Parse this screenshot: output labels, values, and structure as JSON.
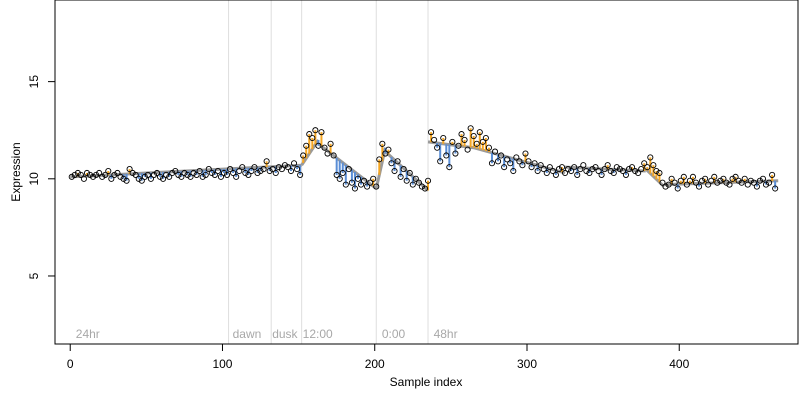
{
  "chart_data": {
    "type": "scatter",
    "title": "",
    "xlabel": "Sample index",
    "ylabel": "Expression",
    "xlim": [
      -10,
      478
    ],
    "ylim": [
      1.5,
      19.2
    ],
    "x_ticks": [
      0,
      100,
      200,
      300,
      400
    ],
    "y_ticks": [
      5,
      10,
      15
    ],
    "grid": false,
    "legend": "none",
    "point_color": "#000000",
    "fit_color": "#9a9a9a",
    "vline_color": "#dedede",
    "annotation_color": "#a8a8a8",
    "residual_colors": {
      "above": "#f5a623",
      "below": "#5a8ed6"
    },
    "vlines": [
      104,
      132,
      152,
      201,
      235
    ],
    "annotations": [
      {
        "x": 3,
        "label": "24hr"
      },
      {
        "x": 106,
        "label": "dawn"
      },
      {
        "x": 132,
        "label": "dusk"
      },
      {
        "x": 152,
        "label": "12:00"
      },
      {
        "x": 204,
        "label": "0:00"
      },
      {
        "x": 238,
        "label": "48hr"
      }
    ],
    "fit_segments": [
      {
        "x": [
          0,
          152
        ],
        "y": [
          10.1,
          10.7
        ]
      },
      {
        "x": [
          152,
          163
        ],
        "y": [
          10.7,
          12.0
        ]
      },
      {
        "x": [
          163,
          201
        ],
        "y": [
          11.8,
          9.5
        ]
      },
      {
        "x": [
          201,
          207
        ],
        "y": [
          9.5,
          11.6
        ]
      },
      {
        "x": [
          207,
          235
        ],
        "y": [
          11.4,
          9.4
        ]
      },
      {
        "x": [
          235,
          265
        ],
        "y": [
          11.9,
          11.6
        ]
      },
      {
        "x": [
          265,
          325
        ],
        "y": [
          11.6,
          10.3
        ]
      },
      {
        "x": [
          325,
          378
        ],
        "y": [
          10.6,
          10.4
        ]
      },
      {
        "x": [
          378,
          390
        ],
        "y": [
          10.5,
          9.6
        ]
      },
      {
        "x": [
          390,
          465
        ],
        "y": [
          9.7,
          9.9
        ]
      }
    ],
    "series": [
      {
        "values": [
          [
            1,
            10.1
          ],
          [
            3,
            10.2
          ],
          [
            5,
            10.3
          ],
          [
            7,
            10.2
          ],
          [
            9,
            10.0
          ],
          [
            11,
            10.3
          ],
          [
            13,
            10.2
          ],
          [
            15,
            10.1
          ],
          [
            17,
            10.2
          ],
          [
            19,
            10.3
          ],
          [
            21,
            10.1
          ],
          [
            23,
            10.2
          ],
          [
            25,
            10.4
          ],
          [
            27,
            10.0
          ],
          [
            29,
            10.2
          ],
          [
            31,
            10.3
          ],
          [
            33,
            10.1
          ],
          [
            35,
            10.0
          ],
          [
            37,
            9.9
          ],
          [
            39,
            10.5
          ],
          [
            41,
            10.3
          ],
          [
            43,
            10.2
          ],
          [
            45,
            10.0
          ],
          [
            47,
            9.9
          ],
          [
            49,
            10.1
          ],
          [
            51,
            10.2
          ],
          [
            53,
            10.0
          ],
          [
            55,
            10.2
          ],
          [
            57,
            10.3
          ],
          [
            59,
            10.1
          ],
          [
            61,
            10.0
          ],
          [
            63,
            10.2
          ],
          [
            65,
            10.1
          ],
          [
            67,
            10.3
          ],
          [
            69,
            10.4
          ],
          [
            71,
            10.2
          ],
          [
            73,
            10.1
          ],
          [
            75,
            10.3
          ],
          [
            77,
            10.2
          ],
          [
            79,
            10.1
          ],
          [
            81,
            10.3
          ],
          [
            83,
            10.2
          ],
          [
            85,
            10.4
          ],
          [
            87,
            10.1
          ],
          [
            89,
            10.2
          ],
          [
            91,
            10.5
          ],
          [
            93,
            10.3
          ],
          [
            95,
            10.2
          ],
          [
            97,
            10.4
          ],
          [
            99,
            10.1
          ],
          [
            101,
            10.3
          ],
          [
            103,
            10.2
          ],
          [
            105,
            10.5
          ],
          [
            107,
            10.3
          ],
          [
            109,
            10.1
          ],
          [
            111,
            10.4
          ],
          [
            113,
            10.6
          ],
          [
            115,
            10.3
          ],
          [
            117,
            10.2
          ],
          [
            119,
            10.4
          ],
          [
            121,
            10.6
          ],
          [
            123,
            10.3
          ],
          [
            125,
            10.4
          ],
          [
            127,
            10.5
          ],
          [
            129,
            10.9
          ],
          [
            131,
            10.4
          ],
          [
            133,
            10.5
          ],
          [
            135,
            10.3
          ],
          [
            137,
            10.6
          ],
          [
            139,
            10.5
          ],
          [
            141,
            10.7
          ],
          [
            143,
            10.6
          ],
          [
            145,
            10.4
          ],
          [
            147,
            10.8
          ],
          [
            149,
            10.5
          ],
          [
            151,
            10.2
          ],
          [
            153,
            11.2
          ],
          [
            155,
            11.7
          ],
          [
            157,
            12.3
          ],
          [
            159,
            12.1
          ],
          [
            161,
            12.5
          ],
          [
            163,
            11.7
          ],
          [
            165,
            12.4
          ],
          [
            167,
            11.6
          ],
          [
            169,
            11.3
          ],
          [
            171,
            11.8
          ],
          [
            173,
            11.2
          ],
          [
            175,
            10.2
          ],
          [
            177,
            10.0
          ],
          [
            179,
            10.3
          ],
          [
            181,
            9.7
          ],
          [
            183,
            10.5
          ],
          [
            185,
            9.8
          ],
          [
            187,
            9.5
          ],
          [
            189,
            10.0
          ],
          [
            191,
            9.7
          ],
          [
            193,
            9.9
          ],
          [
            195,
            9.6
          ],
          [
            197,
            9.8
          ],
          [
            199,
            10.0
          ],
          [
            201,
            9.6
          ],
          [
            203,
            11.0
          ],
          [
            205,
            11.8
          ],
          [
            207,
            11.3
          ],
          [
            209,
            11.5
          ],
          [
            211,
            10.8
          ],
          [
            213,
            10.4
          ],
          [
            215,
            10.9
          ],
          [
            217,
            10.1
          ],
          [
            219,
            10.5
          ],
          [
            221,
            9.9
          ],
          [
            223,
            10.3
          ],
          [
            225,
            9.7
          ],
          [
            227,
            10.0
          ],
          [
            229,
            9.8
          ],
          [
            231,
            9.6
          ],
          [
            233,
            9.5
          ],
          [
            235,
            9.9
          ],
          [
            237,
            12.4
          ],
          [
            239,
            12.0
          ],
          [
            241,
            11.6
          ],
          [
            243,
            10.9
          ],
          [
            245,
            12.1
          ],
          [
            247,
            11.2
          ],
          [
            249,
            10.6
          ],
          [
            251,
            11.9
          ],
          [
            253,
            11.3
          ],
          [
            255,
            11.7
          ],
          [
            257,
            12.3
          ],
          [
            259,
            12.0
          ],
          [
            261,
            11.5
          ],
          [
            263,
            12.6
          ],
          [
            265,
            12.2
          ],
          [
            267,
            11.8
          ],
          [
            269,
            12.4
          ],
          [
            271,
            11.9
          ],
          [
            273,
            12.1
          ],
          [
            275,
            11.6
          ],
          [
            277,
            10.8
          ],
          [
            279,
            11.4
          ],
          [
            281,
            10.9
          ],
          [
            283,
            11.2
          ],
          [
            285,
            10.6
          ],
          [
            287,
            11.0
          ],
          [
            289,
            10.8
          ],
          [
            291,
            10.4
          ],
          [
            293,
            11.1
          ],
          [
            295,
            10.9
          ],
          [
            297,
            10.7
          ],
          [
            299,
            11.3
          ],
          [
            301,
            10.9
          ],
          [
            303,
            10.6
          ],
          [
            305,
            10.8
          ],
          [
            307,
            10.4
          ],
          [
            309,
            10.7
          ],
          [
            311,
            10.5
          ],
          [
            313,
            10.3
          ],
          [
            315,
            10.6
          ],
          [
            317,
            10.4
          ],
          [
            319,
            10.2
          ],
          [
            321,
            10.5
          ],
          [
            323,
            10.6
          ],
          [
            325,
            10.3
          ],
          [
            327,
            10.5
          ],
          [
            329,
            10.4
          ],
          [
            331,
            10.6
          ],
          [
            333,
            10.2
          ],
          [
            335,
            10.5
          ],
          [
            337,
            10.7
          ],
          [
            339,
            10.4
          ],
          [
            341,
            10.3
          ],
          [
            343,
            10.5
          ],
          [
            345,
            10.6
          ],
          [
            347,
            10.4
          ],
          [
            349,
            10.2
          ],
          [
            351,
            10.5
          ],
          [
            353,
            10.7
          ],
          [
            355,
            10.4
          ],
          [
            357,
            10.3
          ],
          [
            359,
            10.6
          ],
          [
            361,
            10.5
          ],
          [
            363,
            10.4
          ],
          [
            365,
            10.2
          ],
          [
            367,
            10.5
          ],
          [
            369,
            10.6
          ],
          [
            371,
            10.4
          ],
          [
            373,
            10.3
          ],
          [
            375,
            10.5
          ],
          [
            377,
            10.8
          ],
          [
            379,
            10.6
          ],
          [
            381,
            11.1
          ],
          [
            383,
            10.7
          ],
          [
            385,
            10.4
          ],
          [
            387,
            10.3
          ],
          [
            389,
            9.8
          ],
          [
            391,
            9.6
          ],
          [
            393,
            9.7
          ],
          [
            395,
            10.0
          ],
          [
            397,
            9.8
          ],
          [
            399,
            9.5
          ],
          [
            401,
            9.9
          ],
          [
            403,
            10.1
          ],
          [
            405,
            9.7
          ],
          [
            407,
            9.9
          ],
          [
            409,
            10.1
          ],
          [
            411,
            9.8
          ],
          [
            413,
            9.6
          ],
          [
            415,
            9.9
          ],
          [
            417,
            10.0
          ],
          [
            419,
            9.7
          ],
          [
            421,
            9.9
          ],
          [
            423,
            10.1
          ],
          [
            425,
            9.8
          ],
          [
            427,
            9.9
          ],
          [
            429,
            10.0
          ],
          [
            431,
            9.8
          ],
          [
            433,
            9.7
          ],
          [
            435,
            10.0
          ],
          [
            437,
            10.1
          ],
          [
            439,
            9.9
          ],
          [
            441,
            9.8
          ],
          [
            443,
            10.0
          ],
          [
            445,
            9.7
          ],
          [
            447,
            9.9
          ],
          [
            449,
            9.8
          ],
          [
            451,
            9.6
          ],
          [
            453,
            9.9
          ],
          [
            455,
            10.0
          ],
          [
            457,
            9.7
          ],
          [
            459,
            9.8
          ],
          [
            461,
            10.2
          ],
          [
            463,
            9.5
          ]
        ]
      }
    ]
  }
}
